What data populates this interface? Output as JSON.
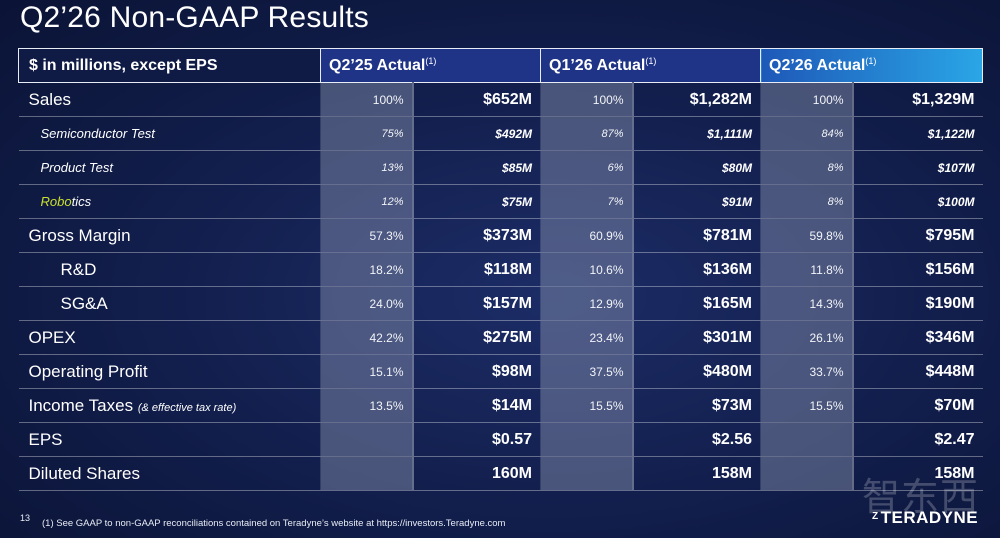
{
  "title": "Q2’26 Non-GAAP Results",
  "header": {
    "label": "$ in millions, except EPS",
    "columns": [
      {
        "label": "Q2’25 Actual",
        "sup": "(1)"
      },
      {
        "label": "Q1’26 Actual",
        "sup": "(1)"
      },
      {
        "label": "Q2’26 Actual",
        "sup": "(1)"
      }
    ]
  },
  "rows": [
    {
      "label": "Sales",
      "vals": [
        "100%",
        "$652M",
        "100%",
        "$1,282M",
        "100%",
        "$1,329M"
      ]
    },
    {
      "label": "Semiconductor Test",
      "vals": [
        "75%",
        "$492M",
        "87%",
        "$1,111M",
        "84%",
        "$1,122M"
      ]
    },
    {
      "label": "Product Test",
      "vals": [
        "13%",
        "$85M",
        "6%",
        "$80M",
        "8%",
        "$107M"
      ]
    },
    {
      "label_hl": "Robo",
      "label_rest": "tics",
      "vals": [
        "12%",
        "$75M",
        "7%",
        "$91M",
        "8%",
        "$100M"
      ]
    },
    {
      "label": "Gross Margin",
      "vals": [
        "57.3%",
        "$373M",
        "60.9%",
        "$781M",
        "59.8%",
        "$795M"
      ]
    },
    {
      "label": "R&D",
      "vals": [
        "18.2%",
        "$118M",
        "10.6%",
        "$136M",
        "11.8%",
        "$156M"
      ]
    },
    {
      "label": "SG&A",
      "vals": [
        "24.0%",
        "$157M",
        "12.9%",
        "$165M",
        "14.3%",
        "$190M"
      ]
    },
    {
      "label": "OPEX",
      "vals": [
        "42.2%",
        "$275M",
        "23.4%",
        "$301M",
        "26.1%",
        "$346M"
      ]
    },
    {
      "label": "Operating Profit",
      "vals": [
        "15.1%",
        "$98M",
        "37.5%",
        "$480M",
        "33.7%",
        "$448M"
      ]
    },
    {
      "label": "Income Taxes",
      "note": "(& effective tax rate)",
      "vals": [
        "13.5%",
        "$14M",
        "15.5%",
        "$73M",
        "15.5%",
        "$70M"
      ]
    },
    {
      "label": "EPS",
      "vals": [
        "",
        "$0.57",
        "",
        "$2.56",
        "",
        "$2.47"
      ]
    },
    {
      "label": "Diluted Shares",
      "vals": [
        "",
        "160M",
        "",
        "158M",
        "",
        "158M"
      ]
    }
  ],
  "footer": {
    "page_number": "13",
    "footnote": "(1)  See GAAP to non-GAAP reconciliations contained on Teradyne’s website at https://investors.Teradyne.com",
    "logo": "TERADYNE",
    "logo_mark": "Z",
    "watermark": "智东西"
  }
}
